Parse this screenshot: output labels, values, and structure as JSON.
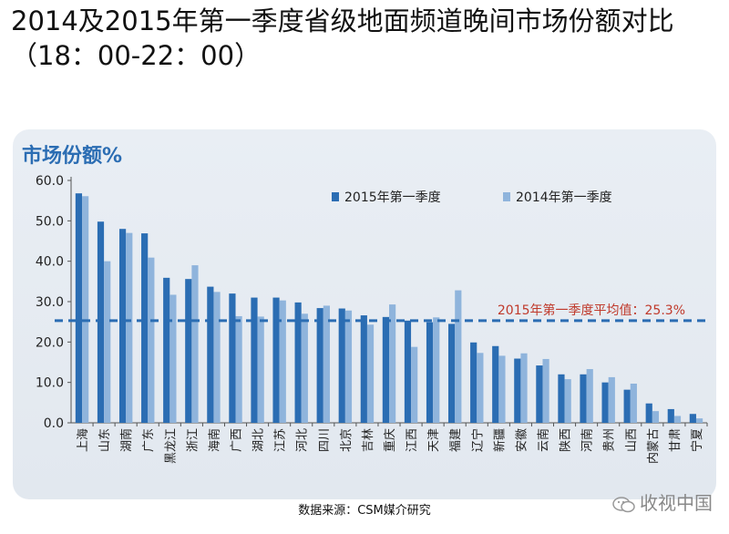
{
  "page": {
    "title_line1": "2014及2015年第一季度省级地面频道晚间市场份额对比",
    "title_line2": "（18：00-22：00）",
    "source": "数据来源：CSM媒介研究",
    "watermark": "收视中国",
    "watermark_icon": "wechat-icon"
  },
  "colors": {
    "s2015": "#2b6db3",
    "s2014": "#8fb4dc",
    "avg_line": "#2b6db3",
    "avg_text": "#c0392b",
    "ylabel": "#2b6db3"
  },
  "chart_data": {
    "type": "bar",
    "ylabel": "市场份额%",
    "ylim": [
      0,
      60
    ],
    "yticks": [
      "0.0",
      "10.0",
      "20.0",
      "30.0",
      "40.0",
      "50.0",
      "60.0"
    ],
    "legend_position": "top-center",
    "categories": [
      "上海",
      "山东",
      "湖南",
      "广东",
      "黑龙江",
      "浙江",
      "海南",
      "广西",
      "湖北",
      "江苏",
      "河北",
      "四川",
      "北京",
      "吉林",
      "重庆",
      "江西",
      "天津",
      "福建",
      "辽宁",
      "新疆",
      "安徽",
      "云南",
      "陕西",
      "河南",
      "贵州",
      "山西",
      "内蒙古",
      "甘肃",
      "宁夏"
    ],
    "series": [
      {
        "name": "2015年第一季度",
        "values": [
          56.8,
          49.8,
          48.0,
          46.9,
          35.9,
          35.6,
          33.7,
          32.0,
          31.0,
          31.0,
          29.8,
          28.4,
          28.3,
          26.6,
          26.2,
          25.3,
          24.9,
          24.5,
          19.9,
          19.0,
          15.9,
          14.2,
          12.0,
          12.0,
          10.0,
          8.2,
          4.8,
          3.4,
          2.2
        ]
      },
      {
        "name": "2014年第一季度",
        "values": [
          56.1,
          40.0,
          47.0,
          40.9,
          31.7,
          39.0,
          32.4,
          26.4,
          26.3,
          30.3,
          27.0,
          29.0,
          27.8,
          24.3,
          29.3,
          18.8,
          26.1,
          32.8,
          17.3,
          16.6,
          17.2,
          15.8,
          10.8,
          13.3,
          11.3,
          9.7,
          2.9,
          1.7,
          1.1
        ]
      }
    ],
    "average": {
      "label": "2015年第一季度平均值：25.3%",
      "value": 25.3
    },
    "grid": false
  }
}
